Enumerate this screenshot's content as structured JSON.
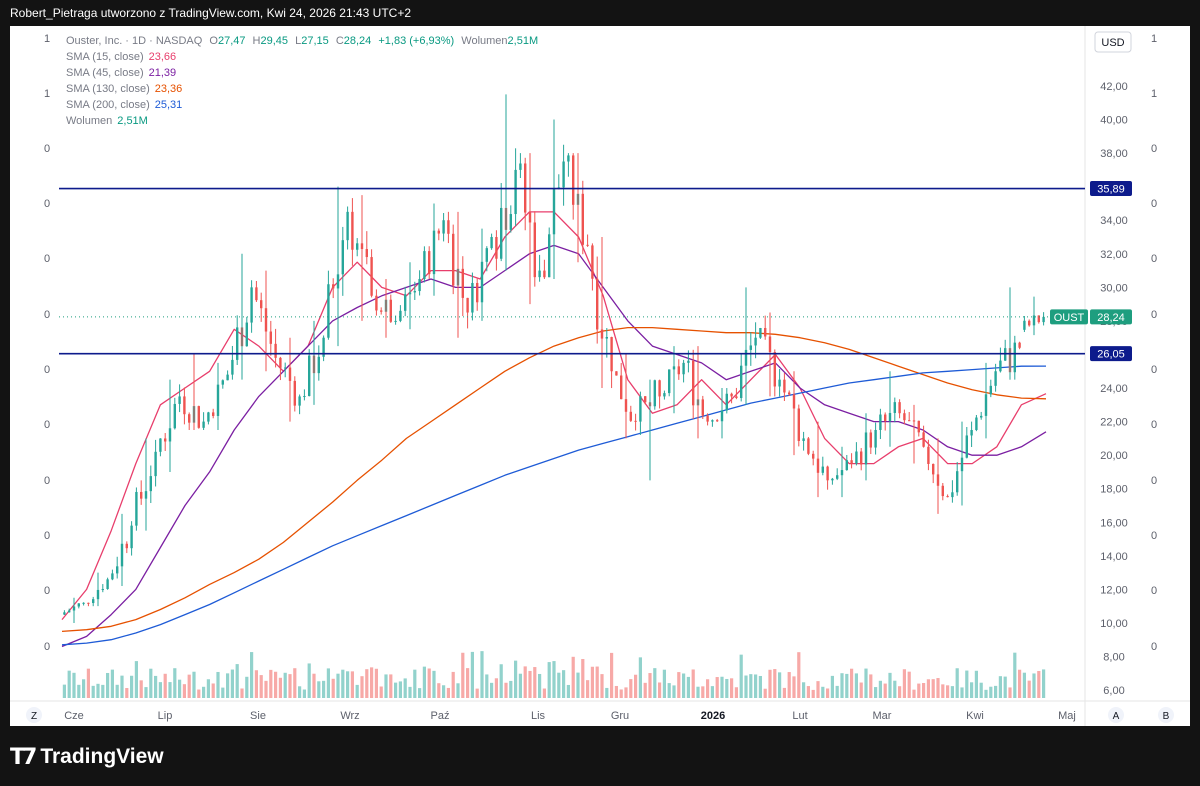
{
  "header": {
    "caption": "Robert_Pietraga utworzono z TradingView.com, Kwi 24, 2026 21:43 UTC+2"
  },
  "legend": {
    "symbol": "Ouster, Inc. · 1D · NASDAQ",
    "open_label": "O",
    "open": "27,47",
    "high_label": "H",
    "high": "29,45",
    "low_label": "L",
    "low": "27,15",
    "close_label": "C",
    "close": "28,24",
    "change": "+1,83 (+6,93%)",
    "volume_label": "Wolumen",
    "volume": "2,51M",
    "indicators": [
      {
        "label": "SMA (15, close)",
        "value": "23,66",
        "color": "#e83e6c"
      },
      {
        "label": "SMA (45, close)",
        "value": "21,39",
        "color": "#7b1fa2"
      },
      {
        "label": "SMA (130, close)",
        "value": "23,36",
        "color": "#e65100"
      },
      {
        "label": "SMA (200, close)",
        "value": "25,31",
        "color": "#1e5bd6"
      }
    ],
    "volume_row_label": "Wolumen",
    "volume_row_value": "2,51M"
  },
  "currency": "USD",
  "price_axis": [
    "42,00",
    "40,00",
    "38,00",
    "36,00",
    "34,00",
    "32,00",
    "30,00",
    "28,00",
    "26,00",
    "24,00",
    "22,00",
    "20,00",
    "18,00",
    "16,00",
    "14,00",
    "12,00",
    "10,00",
    "8,00",
    "6,00"
  ],
  "time_axis": [
    "Cze",
    "Lip",
    "Sie",
    "Wrz",
    "Paź",
    "Lis",
    "Gru",
    "2026",
    "Lut",
    "Mar",
    "Kwi",
    "Maj"
  ],
  "left_scale": [
    "1",
    "1",
    "0",
    "0",
    "0",
    "0",
    "0",
    "0",
    "0",
    "0",
    "0",
    "0"
  ],
  "right_scale": [
    "1",
    "1",
    "0",
    "0",
    "0",
    "0",
    "0",
    "0",
    "0",
    "0",
    "0",
    "0"
  ],
  "corner_buttons": {
    "left": "Z",
    "a": "A",
    "b": "B"
  },
  "price_tags": {
    "resistance": "35,89",
    "support": "26,05",
    "ticker": "OUST",
    "last": "28,24"
  },
  "colors": {
    "up": "#26a69a",
    "down": "#ef5350",
    "line": "#0d1b8c",
    "tag_blue": "#0d1b8c",
    "tag_green": "#1e9e7f"
  },
  "brand": "TradingView",
  "chart_data": {
    "type": "candlestick",
    "title": "Ouster, Inc. · 1D · NASDAQ",
    "ylim": [
      6,
      43
    ],
    "horizontal_lines": [
      35.89,
      26.05
    ],
    "last_price": 28.24,
    "candles_weekly_approx": [
      {
        "x": "Cze",
        "o": 10.5,
        "h": 11.5,
        "l": 10.0,
        "c": 11.2
      },
      {
        "x": "Cze",
        "o": 11.2,
        "h": 13.0,
        "l": 11.0,
        "c": 12.6
      },
      {
        "x": "Cze",
        "o": 12.6,
        "h": 16.5,
        "l": 12.2,
        "c": 15.8
      },
      {
        "x": "Cze",
        "o": 15.8,
        "h": 21.0,
        "l": 15.5,
        "c": 20.2
      },
      {
        "x": "Lip",
        "o": 20.2,
        "h": 24.5,
        "l": 19.0,
        "c": 23.5
      },
      {
        "x": "Lip",
        "o": 23.5,
        "h": 26.0,
        "l": 21.5,
        "c": 22.0
      },
      {
        "x": "Lip",
        "o": 22.0,
        "h": 25.5,
        "l": 21.5,
        "c": 24.8
      },
      {
        "x": "Lip",
        "o": 24.8,
        "h": 32.0,
        "l": 24.5,
        "c": 30.0
      },
      {
        "x": "Sie",
        "o": 30.0,
        "h": 31.0,
        "l": 25.0,
        "c": 25.8
      },
      {
        "x": "Sie",
        "o": 25.8,
        "h": 27.0,
        "l": 22.0,
        "c": 23.5
      },
      {
        "x": "Sie",
        "o": 23.5,
        "h": 28.0,
        "l": 23.0,
        "c": 27.0
      },
      {
        "x": "Sie",
        "o": 27.0,
        "h": 36.0,
        "l": 26.5,
        "c": 34.5
      },
      {
        "x": "Wrz",
        "o": 34.5,
        "h": 35.5,
        "l": 28.0,
        "c": 29.5
      },
      {
        "x": "Wrz",
        "o": 29.5,
        "h": 30.5,
        "l": 27.0,
        "c": 28.0
      },
      {
        "x": "Wrz",
        "o": 28.0,
        "h": 31.5,
        "l": 27.5,
        "c": 30.5
      },
      {
        "x": "Wrz",
        "o": 30.5,
        "h": 35.0,
        "l": 29.5,
        "c": 34.0
      },
      {
        "x": "Paź",
        "o": 34.0,
        "h": 34.5,
        "l": 27.0,
        "c": 28.5
      },
      {
        "x": "Paź",
        "o": 28.5,
        "h": 33.5,
        "l": 28.0,
        "c": 33.0
      },
      {
        "x": "Paź",
        "o": 33.0,
        "h": 41.5,
        "l": 31.0,
        "c": 37.0
      },
      {
        "x": "Paź",
        "o": 37.0,
        "h": 38.0,
        "l": 29.0,
        "c": 31.0
      },
      {
        "x": "Lis",
        "o": 31.0,
        "h": 40.0,
        "l": 30.5,
        "c": 37.5
      },
      {
        "x": "Lis",
        "o": 37.5,
        "h": 38.0,
        "l": 31.5,
        "c": 32.5
      },
      {
        "x": "Lis",
        "o": 32.5,
        "h": 33.0,
        "l": 24.0,
        "c": 25.0
      },
      {
        "x": "Lis",
        "o": 25.0,
        "h": 26.0,
        "l": 21.0,
        "c": 22.0
      },
      {
        "x": "Gru",
        "o": 22.0,
        "h": 24.5,
        "l": 18.5,
        "c": 23.5
      },
      {
        "x": "Gru",
        "o": 23.5,
        "h": 26.5,
        "l": 22.5,
        "c": 25.5
      },
      {
        "x": "Gru",
        "o": 25.5,
        "h": 26.5,
        "l": 21.0,
        "c": 22.0
      },
      {
        "x": "Gru",
        "o": 22.0,
        "h": 24.0,
        "l": 21.0,
        "c": 23.5
      },
      {
        "x": "2026",
        "o": 23.5,
        "h": 30.0,
        "l": 23.0,
        "c": 27.0
      },
      {
        "x": "2026",
        "o": 27.0,
        "h": 28.5,
        "l": 23.5,
        "c": 24.5
      },
      {
        "x": "2026",
        "o": 24.5,
        "h": 25.0,
        "l": 20.0,
        "c": 21.0
      },
      {
        "x": "Lut",
        "o": 21.0,
        "h": 22.0,
        "l": 17.5,
        "c": 18.5
      },
      {
        "x": "Lut",
        "o": 18.5,
        "h": 20.5,
        "l": 17.5,
        "c": 19.5
      },
      {
        "x": "Lut",
        "o": 19.5,
        "h": 22.5,
        "l": 18.5,
        "c": 21.5
      },
      {
        "x": "Mar",
        "o": 21.5,
        "h": 25.0,
        "l": 20.5,
        "c": 22.5
      },
      {
        "x": "Mar",
        "o": 22.5,
        "h": 23.0,
        "l": 19.5,
        "c": 20.5
      },
      {
        "x": "Mar",
        "o": 20.5,
        "h": 21.0,
        "l": 16.5,
        "c": 17.5
      },
      {
        "x": "Kwi",
        "o": 17.5,
        "h": 22.0,
        "l": 17.0,
        "c": 21.5
      },
      {
        "x": "Kwi",
        "o": 21.5,
        "h": 25.5,
        "l": 21.0,
        "c": 25.0
      },
      {
        "x": "Kwi",
        "o": 25.0,
        "h": 30.0,
        "l": 24.5,
        "c": 26.4
      },
      {
        "x": "Kwi",
        "o": 27.47,
        "h": 29.45,
        "l": 27.15,
        "c": 28.24
      }
    ],
    "sma_series": [
      {
        "name": "SMA (15, close)",
        "color": "#e83e6c",
        "values": [
          10.2,
          12.0,
          15.5,
          19.5,
          23.0,
          24.0,
          25.0,
          27.5,
          26.5,
          25.0,
          26.5,
          30.0,
          31.5,
          30.0,
          29.5,
          31.0,
          31.0,
          30.5,
          33.0,
          34.5,
          34.5,
          33.0,
          29.5,
          24.5,
          22.5,
          23.0,
          24.5,
          23.0,
          24.5,
          26.0,
          24.0,
          21.0,
          19.5,
          19.5,
          20.5,
          21.0,
          19.5,
          19.5,
          20.5,
          23.0,
          23.66
        ]
      },
      {
        "name": "SMA (45, close)",
        "color": "#7b1fa2",
        "values": [
          8.6,
          9.2,
          10.5,
          12.0,
          14.5,
          17.0,
          19.0,
          21.5,
          23.5,
          25.0,
          26.5,
          28.0,
          28.8,
          29.5,
          30.0,
          30.5,
          30.0,
          30.0,
          31.0,
          32.0,
          32.5,
          32.0,
          30.0,
          28.0,
          26.5,
          26.0,
          25.5,
          24.5,
          25.0,
          25.5,
          24.0,
          23.0,
          22.5,
          22.0,
          22.0,
          21.5,
          20.5,
          20.0,
          20.0,
          20.5,
          21.39
        ]
      },
      {
        "name": "SMA (130, close)",
        "color": "#e65100",
        "values": [
          9.5,
          9.6,
          9.8,
          10.2,
          10.8,
          11.5,
          12.3,
          13.0,
          13.8,
          14.8,
          16.0,
          17.2,
          18.5,
          19.7,
          21.0,
          22.0,
          23.0,
          24.0,
          25.0,
          25.8,
          26.5,
          27.0,
          27.4,
          27.6,
          27.6,
          27.5,
          27.4,
          27.3,
          27.3,
          27.2,
          27.0,
          26.7,
          26.3,
          25.8,
          25.3,
          24.8,
          24.3,
          23.9,
          23.6,
          23.4,
          23.36
        ]
      },
      {
        "name": "SMA (200, close)",
        "color": "#1e5bd6",
        "values": [
          8.7,
          8.8,
          9.0,
          9.4,
          9.9,
          10.5,
          11.1,
          11.8,
          12.5,
          13.2,
          13.9,
          14.6,
          15.2,
          15.8,
          16.4,
          17.0,
          17.6,
          18.2,
          18.8,
          19.3,
          19.8,
          20.3,
          20.7,
          21.1,
          21.5,
          21.9,
          22.3,
          22.7,
          23.1,
          23.4,
          23.7,
          24.0,
          24.3,
          24.5,
          24.7,
          24.9,
          25.0,
          25.1,
          25.2,
          25.3,
          25.31
        ]
      }
    ]
  }
}
